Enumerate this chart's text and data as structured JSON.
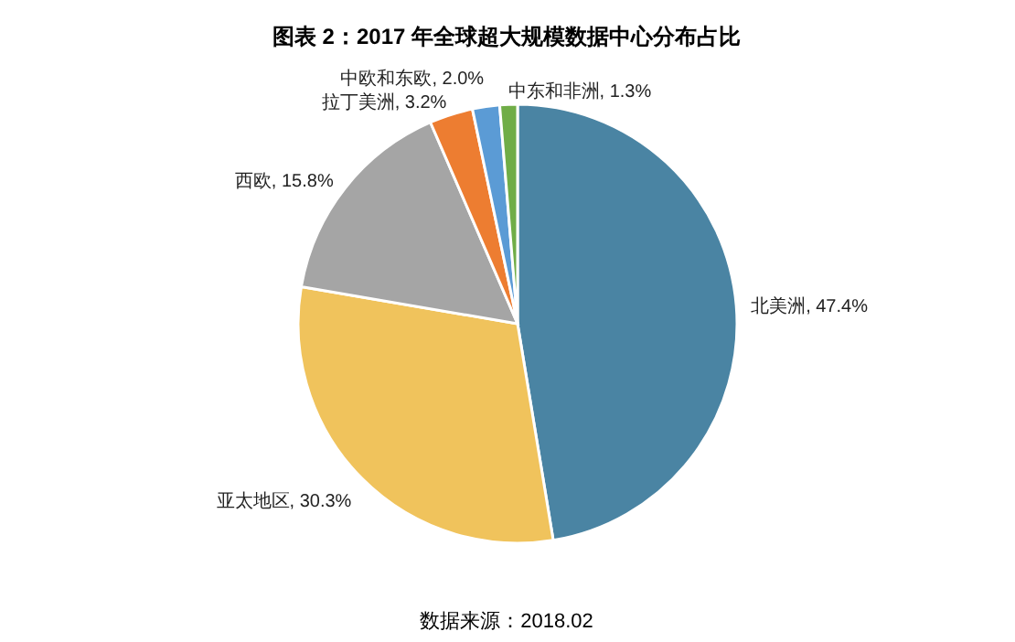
{
  "chart_data": {
    "type": "pie",
    "title": "图表 2：2017 年全球超大规模数据中心分布占比",
    "categories": [
      "北美洲",
      "亚太地区",
      "西欧",
      "拉丁美洲",
      "中欧和东欧",
      "中东和非洲"
    ],
    "values": [
      47.4,
      30.3,
      15.8,
      3.2,
      2.0,
      1.3
    ],
    "colors": [
      "#4a84a3",
      "#f0c35c",
      "#a5a5a5",
      "#ed7d31",
      "#5b9bd5",
      "#70ad47"
    ],
    "value_labels": [
      ", 47.4%",
      ", 30.3%",
      ", 15.8%",
      ", 3.2%",
      ", 2.0%",
      ", 1.3%"
    ],
    "annotations": [
      "数据来源：2018.02"
    ]
  }
}
